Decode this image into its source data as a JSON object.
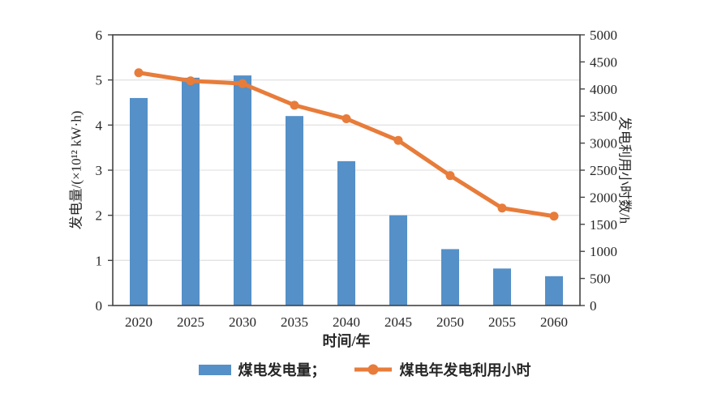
{
  "chart_data": {
    "type": "bar",
    "subtype": "bar-line-combo",
    "title": "",
    "categories": [
      "2020",
      "2025",
      "2030",
      "2035",
      "2040",
      "2045",
      "2050",
      "2055",
      "2060"
    ],
    "series": [
      {
        "name": "煤电发电量",
        "type": "bar",
        "axis": "left",
        "unit": "×10¹² kW·h",
        "values": [
          4.6,
          5.05,
          5.1,
          4.2,
          3.2,
          2.0,
          1.25,
          0.82,
          0.65
        ]
      },
      {
        "name": "煤电年发电利用小时",
        "type": "line",
        "axis": "right",
        "unit": "h",
        "values": [
          4300,
          4150,
          4100,
          3700,
          3450,
          3050,
          2400,
          1800,
          1650
        ]
      }
    ],
    "x_axis": {
      "label": "时间/年"
    },
    "left_axis": {
      "label": "发电量/(×10¹² kW·h)",
      "min": 0,
      "max": 6,
      "ticks": [
        0,
        1,
        2,
        3,
        4,
        5,
        6
      ]
    },
    "right_axis": {
      "label": "发电利用小时数/h",
      "min": 0,
      "max": 5000,
      "ticks": [
        0,
        500,
        1000,
        1500,
        2000,
        2500,
        3000,
        3500,
        4000,
        4500,
        5000
      ]
    },
    "grid": "horizontal",
    "legend_position": "bottom",
    "legend": [
      {
        "label": "煤电发电量；",
        "swatch": "bar"
      },
      {
        "label": "煤电年发电利用小时",
        "swatch": "line-marker"
      }
    ]
  },
  "colors": {
    "bar": "#5590c8",
    "line": "#e87c3a",
    "grid": "#e3e3e3",
    "axis": "#444444",
    "text": "#262626",
    "background": "#ffffff"
  }
}
